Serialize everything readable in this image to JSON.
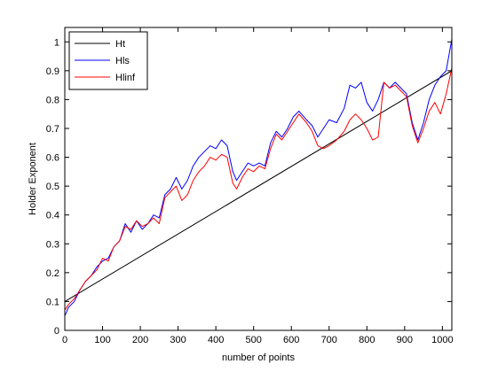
{
  "chart_data": {
    "type": "line",
    "title": "",
    "xlabel": "number of points",
    "ylabel": "Holder Exponent",
    "xlim": [
      0,
      1025
    ],
    "ylim": [
      0,
      1.05
    ],
    "xticks": [
      "0",
      "100",
      "200",
      "300",
      "400",
      "500",
      "600",
      "700",
      "800",
      "900",
      "1000"
    ],
    "yticks": [
      "0",
      "0.1",
      "0.2",
      "0.3",
      "0.4",
      "0.5",
      "0.6",
      "0.7",
      "0.8",
      "0.9",
      "1"
    ],
    "grid": false,
    "legend_position": "top-left",
    "series": [
      {
        "name": "Ht",
        "color": "#000000",
        "x": [
          0,
          1025
        ],
        "y": [
          0.1,
          0.9
        ]
      },
      {
        "name": "Hls",
        "color": "#0000ff",
        "x": [
          0,
          10,
          25,
          40,
          55,
          70,
          85,
          100,
          115,
          130,
          145,
          160,
          175,
          190,
          205,
          220,
          235,
          250,
          265,
          280,
          295,
          310,
          325,
          340,
          355,
          370,
          385,
          400,
          415,
          430,
          445,
          455,
          470,
          485,
          500,
          515,
          530,
          545,
          560,
          575,
          590,
          605,
          620,
          640,
          655,
          670,
          685,
          700,
          720,
          740,
          755,
          770,
          785,
          800,
          815,
          830,
          845,
          860,
          875,
          890,
          905,
          920,
          935,
          950,
          965,
          980,
          995,
          1010,
          1025
        ],
        "y": [
          0.05,
          0.08,
          0.1,
          0.14,
          0.17,
          0.19,
          0.22,
          0.24,
          0.25,
          0.29,
          0.31,
          0.37,
          0.34,
          0.38,
          0.35,
          0.37,
          0.4,
          0.39,
          0.47,
          0.49,
          0.53,
          0.49,
          0.52,
          0.57,
          0.6,
          0.62,
          0.64,
          0.63,
          0.66,
          0.64,
          0.55,
          0.52,
          0.55,
          0.58,
          0.57,
          0.58,
          0.57,
          0.65,
          0.69,
          0.67,
          0.7,
          0.74,
          0.76,
          0.73,
          0.71,
          0.67,
          0.7,
          0.73,
          0.72,
          0.77,
          0.85,
          0.84,
          0.86,
          0.79,
          0.76,
          0.8,
          0.86,
          0.84,
          0.86,
          0.84,
          0.82,
          0.72,
          0.66,
          0.72,
          0.8,
          0.85,
          0.88,
          0.9,
          1.01
        ]
      },
      {
        "name": "Hlinf",
        "color": "#ff0000",
        "x": [
          0,
          10,
          25,
          40,
          55,
          70,
          85,
          100,
          115,
          130,
          145,
          160,
          175,
          190,
          205,
          220,
          235,
          250,
          265,
          280,
          295,
          310,
          325,
          340,
          355,
          370,
          385,
          400,
          415,
          430,
          445,
          455,
          470,
          485,
          500,
          515,
          530,
          545,
          560,
          575,
          590,
          605,
          620,
          640,
          655,
          670,
          685,
          700,
          720,
          740,
          755,
          770,
          785,
          800,
          815,
          830,
          845,
          860,
          875,
          890,
          905,
          920,
          935,
          950,
          965,
          980,
          995,
          1010,
          1025
        ],
        "y": [
          0.07,
          0.09,
          0.11,
          0.14,
          0.17,
          0.19,
          0.21,
          0.25,
          0.24,
          0.29,
          0.31,
          0.36,
          0.35,
          0.38,
          0.36,
          0.37,
          0.39,
          0.37,
          0.46,
          0.48,
          0.5,
          0.45,
          0.47,
          0.52,
          0.55,
          0.57,
          0.6,
          0.59,
          0.61,
          0.6,
          0.51,
          0.49,
          0.53,
          0.56,
          0.55,
          0.57,
          0.56,
          0.63,
          0.68,
          0.66,
          0.69,
          0.72,
          0.75,
          0.72,
          0.69,
          0.64,
          0.63,
          0.64,
          0.66,
          0.69,
          0.73,
          0.75,
          0.73,
          0.7,
          0.66,
          0.67,
          0.86,
          0.84,
          0.85,
          0.83,
          0.81,
          0.71,
          0.65,
          0.7,
          0.76,
          0.79,
          0.75,
          0.82,
          0.91
        ]
      }
    ]
  }
}
